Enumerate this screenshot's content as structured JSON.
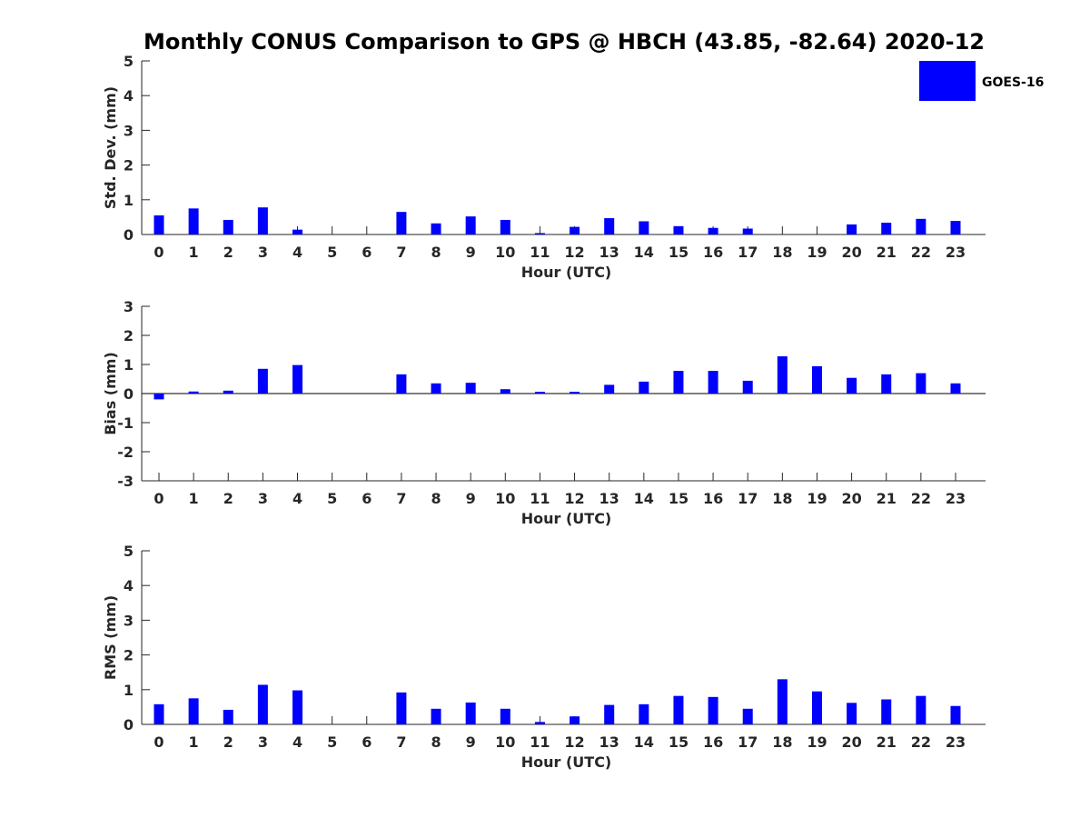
{
  "title": "Monthly CONUS Comparison to GPS @ HBCH (43.85, -82.64) 2020-12",
  "colors": {
    "bar": "#0000ff",
    "axis": "#262626"
  },
  "legend": {
    "label": "GOES-16",
    "placement": "top-right"
  },
  "chart_data": [
    {
      "type": "bar",
      "name": "std-dev",
      "categories": [
        "0",
        "1",
        "2",
        "3",
        "4",
        "5",
        "6",
        "7",
        "8",
        "9",
        "10",
        "11",
        "12",
        "13",
        "14",
        "15",
        "16",
        "17",
        "18",
        "19",
        "20",
        "21",
        "22",
        "23"
      ],
      "series": [
        {
          "name": "GOES-16",
          "values": [
            0.55,
            0.75,
            0.42,
            0.78,
            0.14,
            0,
            0,
            0.65,
            0.32,
            0.52,
            0.42,
            0.04,
            0.22,
            0.47,
            0.38,
            0.24,
            0.19,
            0.17,
            0,
            0,
            0.29,
            0.34,
            0.45,
            0.39
          ]
        }
      ],
      "missing": [
        5,
        6,
        18,
        19
      ],
      "xlabel": "Hour (UTC)",
      "ylabel": "Std. Dev. (mm)",
      "ylim": [
        0,
        5
      ],
      "yticks": [
        0,
        1,
        2,
        3,
        4,
        5
      ]
    },
    {
      "type": "bar",
      "name": "bias",
      "categories": [
        "0",
        "1",
        "2",
        "3",
        "4",
        "5",
        "6",
        "7",
        "8",
        "9",
        "10",
        "11",
        "12",
        "13",
        "14",
        "15",
        "16",
        "17",
        "18",
        "19",
        "20",
        "21",
        "22",
        "23"
      ],
      "series": [
        {
          "name": "GOES-16",
          "values": [
            -0.2,
            0.07,
            0.1,
            0.85,
            0.98,
            0,
            0,
            0.66,
            0.35,
            0.37,
            0.15,
            0.06,
            0.06,
            0.3,
            0.41,
            0.78,
            0.78,
            0.44,
            1.28,
            0.94,
            0.54,
            0.66,
            0.7,
            0.35
          ]
        }
      ],
      "missing": [
        5,
        6
      ],
      "xlabel": "Hour (UTC)",
      "ylabel": "Bias (mm)",
      "ylim": [
        -3,
        3
      ],
      "yticks": [
        -3,
        -2,
        -1,
        0,
        1,
        2,
        3
      ]
    },
    {
      "type": "bar",
      "name": "rms",
      "categories": [
        "0",
        "1",
        "2",
        "3",
        "4",
        "5",
        "6",
        "7",
        "8",
        "9",
        "10",
        "11",
        "12",
        "13",
        "14",
        "15",
        "16",
        "17",
        "18",
        "19",
        "20",
        "21",
        "22",
        "23"
      ],
      "series": [
        {
          "name": "GOES-16",
          "values": [
            0.58,
            0.75,
            0.42,
            1.14,
            0.98,
            0,
            0,
            0.92,
            0.45,
            0.63,
            0.45,
            0.07,
            0.23,
            0.56,
            0.58,
            0.82,
            0.79,
            0.45,
            1.3,
            0.95,
            0.62,
            0.72,
            0.82,
            0.53
          ]
        }
      ],
      "missing": [
        5,
        6
      ],
      "xlabel": "Hour (UTC)",
      "ylabel": "RMS (mm)",
      "ylim": [
        0,
        5
      ],
      "yticks": [
        0,
        1,
        2,
        3,
        4,
        5
      ]
    }
  ]
}
